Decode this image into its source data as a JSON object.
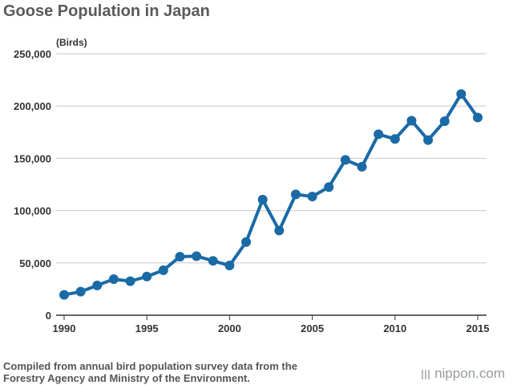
{
  "chart_data": {
    "type": "line",
    "title": "Goose Population in Japan",
    "unit_label": "(Birds)",
    "xlabel": "",
    "ylabel": "",
    "x": [
      1990,
      1991,
      1992,
      1993,
      1994,
      1995,
      1996,
      1997,
      1998,
      1999,
      2000,
      2001,
      2002,
      2003,
      2004,
      2005,
      2006,
      2007,
      2008,
      2009,
      2010,
      2011,
      2012,
      2013,
      2014,
      2015
    ],
    "series": [
      {
        "values": [
          19500,
          22500,
          28500,
          34500,
          32500,
          37000,
          43000,
          56000,
          56500,
          52000,
          47500,
          70000,
          110500,
          81000,
          115500,
          113500,
          122500,
          148500,
          142000,
          173000,
          168500,
          186000,
          167500,
          185500,
          211500,
          189000
        ]
      }
    ],
    "ylim": [
      0,
      250000
    ],
    "yticks": [
      0,
      50000,
      100000,
      150000,
      200000,
      250000
    ],
    "ytick_labels": [
      "0",
      "50,000",
      "100,000",
      "150,000",
      "200,000",
      "250,000"
    ],
    "xlim": [
      1990,
      2015
    ],
    "xticks": [
      1990,
      1995,
      2000,
      2005,
      2010,
      2015
    ],
    "xtick_labels": [
      "1990",
      "1995",
      "2000",
      "2005",
      "2010",
      "2015"
    ],
    "grid": "horizontal",
    "line_color": "#1a6aa6"
  },
  "footer": {
    "source_line1": "Compiled from annual bird population survey data from the",
    "source_line2": "Forestry Agency and Ministry of the Environment.",
    "brand_name": "nippon",
    "brand_dot": ".",
    "brand_tld": "com"
  }
}
